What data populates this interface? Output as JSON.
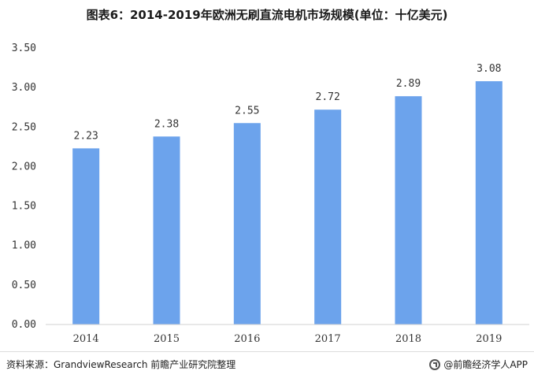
{
  "chart_data": {
    "type": "bar",
    "title": "图表6：2014-2019年欧洲无刷直流电机市场规模(单位：十亿美元)",
    "categories": [
      "2014",
      "2015",
      "2016",
      "2017",
      "2018",
      "2019"
    ],
    "values": [
      2.23,
      2.38,
      2.55,
      2.72,
      2.89,
      3.08
    ],
    "value_labels": [
      "2.23",
      "2.38",
      "2.55",
      "2.72",
      "2.89",
      "3.08"
    ],
    "ylim": [
      0,
      3.5
    ],
    "yticks": [
      "0.00",
      "0.50",
      "1.00",
      "1.50",
      "2.00",
      "2.50",
      "3.00",
      "3.50"
    ],
    "xlabel": "",
    "ylabel": "",
    "grid": false,
    "bar_color": "#6ca3ec"
  },
  "footer": {
    "source": "资料来源：GrandviewResearch 前瞻产业研究院整理",
    "brand": "@前瞻经济学人APP"
  }
}
